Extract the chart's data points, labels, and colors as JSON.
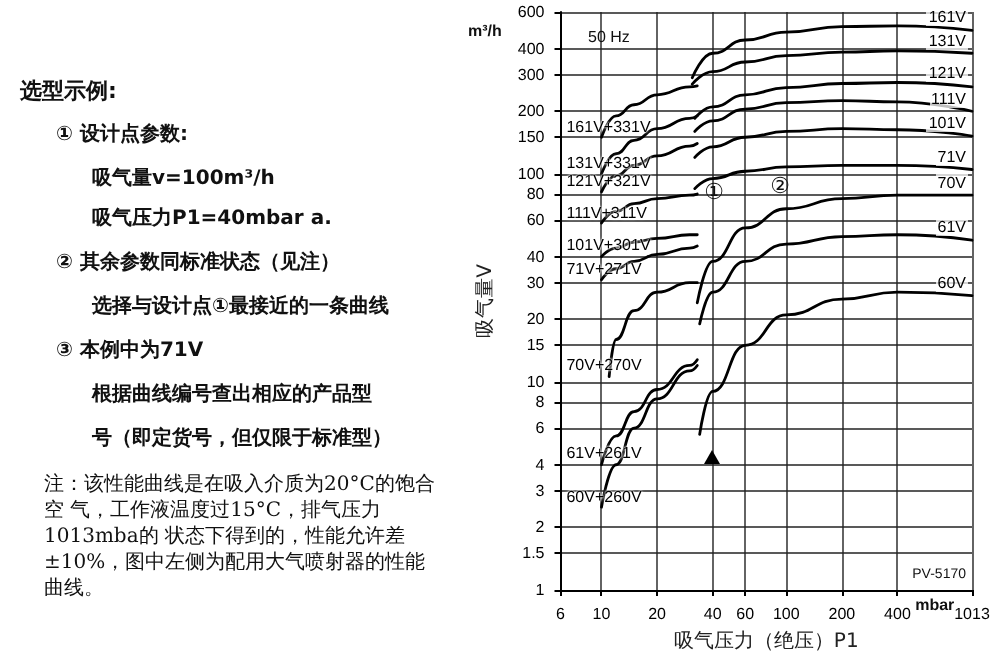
{
  "chart_data": {
    "type": "line",
    "xlabel": "吸气压力（绝压）P1",
    "ylabel": "吸气量V",
    "log": "xy",
    "grid": true,
    "legend": false,
    "marker": "none",
    "line_style": "solid",
    "xlim": [
      6,
      1013
    ],
    "xticks": [
      6,
      10,
      20,
      40,
      60,
      100,
      200,
      400,
      1013
    ],
    "ylim": [
      1,
      600
    ],
    "yticks": [
      1,
      1.5,
      2,
      3,
      4,
      6,
      8,
      10,
      15,
      20,
      30,
      40,
      60,
      80,
      100,
      150,
      200,
      300,
      400,
      600
    ],
    "series": [
      {
        "name": "161V",
        "color": "#000000",
        "x": [
          31,
          40,
          60,
          100,
          200,
          400,
          1013
        ],
        "values": [
          290,
          380,
          440,
          480,
          510,
          515,
          490
        ]
      },
      {
        "name": "131V",
        "color": "#000000",
        "x": [
          31,
          40,
          60,
          100,
          200,
          400,
          1013
        ],
        "values": [
          270,
          310,
          345,
          370,
          385,
          390,
          380
        ]
      },
      {
        "name": "121V",
        "color": "#000000",
        "x": [
          32,
          40,
          60,
          100,
          200,
          400,
          1013
        ],
        "values": [
          185,
          210,
          240,
          260,
          272,
          275,
          262
        ]
      },
      {
        "name": "111V",
        "color": "#000000",
        "x": [
          32,
          40,
          60,
          100,
          200,
          400,
          1013
        ],
        "values": [
          160,
          180,
          205,
          220,
          225,
          222,
          200
        ]
      },
      {
        "name": "101V",
        "color": "#000000",
        "x": [
          32,
          40,
          60,
          100,
          200,
          400,
          1013
        ],
        "values": [
          120,
          135,
          150,
          160,
          165,
          163,
          152
        ]
      },
      {
        "name": "71V",
        "color": "#000000",
        "x": [
          32,
          40,
          60,
          100,
          200,
          400,
          1013
        ],
        "values": [
          85,
          95,
          103,
          108,
          110,
          110,
          105
        ]
      },
      {
        "name": "70V",
        "color": "#000000",
        "x": [
          33,
          40,
          60,
          100,
          200,
          400,
          1013
        ],
        "values": [
          24,
          38,
          55,
          68,
          76,
          79,
          79
        ]
      },
      {
        "name": "61V",
        "color": "#000000",
        "x": [
          34,
          40,
          60,
          100,
          200,
          400,
          1013
        ],
        "values": [
          19,
          27,
          38,
          46,
          50,
          51,
          48
        ]
      },
      {
        "name": "60V",
        "color": "#000000",
        "x": [
          34,
          40,
          60,
          100,
          200,
          400,
          1013
        ],
        "values": [
          5.6,
          9,
          15,
          21,
          25,
          27,
          26
        ]
      },
      {
        "name": "161V+331V",
        "color": "#000000",
        "x": [
          10,
          12,
          15,
          20,
          30,
          33
        ],
        "values": [
          150,
          190,
          215,
          240,
          262,
          265
        ]
      },
      {
        "name": "131V+331V",
        "color": "#000000",
        "x": [
          10,
          12,
          15,
          20,
          30,
          33
        ],
        "values": [
          100,
          125,
          145,
          165,
          185,
          190
        ]
      },
      {
        "name": "121V+321V",
        "color": "#000000",
        "x": [
          10,
          12,
          15,
          20,
          30,
          33
        ],
        "values": [
          82,
          98,
          110,
          122,
          136,
          140
        ]
      },
      {
        "name": "111V+311V",
        "color": "#000000",
        "x": [
          10,
          12,
          15,
          20,
          30,
          33
        ],
        "values": [
          58,
          66,
          72,
          76,
          79,
          80
        ]
      },
      {
        "name": "101V+301V",
        "color": "#000000",
        "x": [
          10,
          12,
          15,
          20,
          30,
          33
        ],
        "values": [
          40,
          44,
          47,
          49,
          51,
          51
        ]
      },
      {
        "name": "71V+271V",
        "color": "#000000",
        "x": [
          10,
          12,
          15,
          20,
          30,
          33
        ],
        "values": [
          31,
          35,
          38,
          41,
          44,
          45
        ]
      },
      {
        "name": "70V+270V",
        "color": "#000000",
        "x": [
          11,
          12,
          15,
          20,
          30,
          33
        ],
        "values": [
          10.6,
          16,
          22,
          27,
          30,
          30
        ]
      },
      {
        "name": "61V+261V",
        "color": "#000000",
        "x": [
          10,
          12,
          15,
          20,
          30,
          33
        ],
        "values": [
          4,
          5.5,
          7.2,
          9.2,
          12,
          12.8
        ]
      },
      {
        "name": "60V+260V",
        "color": "#000000",
        "x": [
          10,
          12,
          15,
          20,
          30,
          33
        ],
        "values": [
          2.5,
          4,
          6,
          8.3,
          11.3,
          12
        ]
      }
    ],
    "annotations": [
      "m³/h",
      "50 Hz",
      "mbar",
      "PV-5170",
      "①",
      "②",
      "选型示例:",
      "① 设计点参数:",
      "吸气量v=100m³/h",
      "吸气压力P1=40mbar a.",
      "② 其余参数同标准状态（见注）",
      "选择与设计点①最接近的一条曲线",
      "③ 本例中为71V",
      "根据曲线编号查出相应的产品型",
      "号（即定货号，但仅限于标准型）",
      "注：该性能曲线是在吸入介质为20°C的饱合空 气，工作液温度过15°C，排气压力1013mba的 状态下得到的，性能允许差±10%，图中左侧为配用大气喷射器的性能曲线。"
    ]
  }
}
